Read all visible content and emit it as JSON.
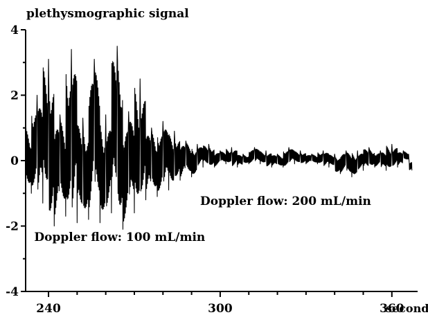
{
  "chart_data": {
    "type": "line",
    "title": "",
    "ylabel": "plethysmographic signal",
    "xlabel": "seconds",
    "xlim": [
      232,
      369
    ],
    "ylim": [
      -4,
      4
    ],
    "x_ticks": [
      240,
      300,
      360
    ],
    "y_ticks": [
      -4,
      -2,
      0,
      2,
      4
    ],
    "grid": false,
    "legend": "none",
    "annotations": [
      {
        "text": "Doppler flow: 100 mL/min",
        "x": 235,
        "y": -2.45
      },
      {
        "text": "Doppler flow: 200 mL/min",
        "x": 293,
        "y": -1.35
      }
    ],
    "series": [
      {
        "x": [
          232,
          234,
          236,
          238,
          240,
          242,
          244,
          246,
          248,
          250,
          252,
          254,
          256,
          258,
          260,
          262,
          264,
          266,
          268,
          270,
          272,
          274,
          276,
          278,
          280,
          282,
          284,
          286,
          288,
          290,
          292,
          294,
          296,
          298,
          300,
          302,
          304,
          306,
          308,
          310,
          312,
          314,
          316,
          318,
          320,
          322,
          324,
          326,
          328,
          330,
          332,
          334,
          336,
          338,
          340,
          342,
          344,
          346,
          348,
          350,
          352,
          354,
          356,
          358,
          360,
          362,
          364,
          366,
          367
        ],
        "y": [
          1.1,
          -1.0,
          2.0,
          -1.3,
          3.1,
          -2.0,
          1.4,
          -1.7,
          3.4,
          -1.9,
          1.3,
          -1.8,
          3.1,
          -1.9,
          1.4,
          -1.6,
          3.5,
          -2.1,
          1.5,
          -1.6,
          2.5,
          -1.2,
          1.0,
          -1.1,
          1.2,
          -0.9,
          0.9,
          -0.6,
          0.6,
          -0.5,
          0.5,
          -0.2,
          0.5,
          -0.2,
          0.3,
          -0.1,
          0.4,
          -0.2,
          0.2,
          -0.1,
          0.4,
          -0.1,
          0.3,
          -0.2,
          0.2,
          -0.2,
          0.4,
          -0.1,
          0.3,
          -0.1,
          0.2,
          -0.1,
          0.3,
          -0.2,
          0.2,
          -0.4,
          0.3,
          -0.5,
          0.3,
          -0.3,
          0.4,
          -0.2,
          0.3,
          -0.3,
          0.5,
          -0.2,
          0.3,
          0.0,
          -0.3
        ]
      }
    ]
  }
}
